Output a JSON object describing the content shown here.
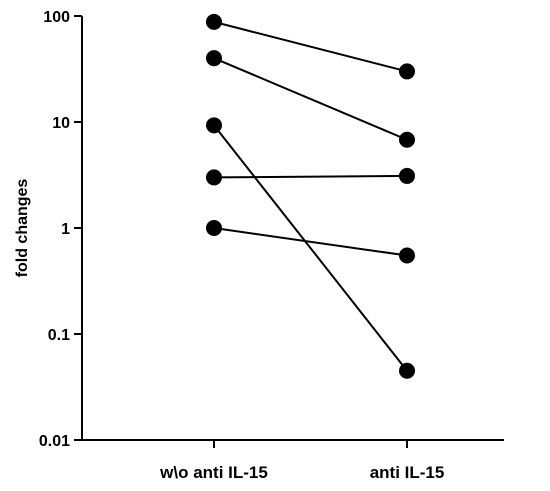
{
  "chart_data": {
    "type": "line",
    "ylabel": "fold changes",
    "xlabel": "",
    "yscale": "log",
    "ylim": [
      0.01,
      100
    ],
    "yticks": [
      0.01,
      0.1,
      1,
      10,
      100
    ],
    "ytick_labels": [
      "0.01",
      "0.1",
      "1",
      "10",
      "100"
    ],
    "categories": [
      "w\\o anti IL-15",
      "anti IL-15"
    ],
    "series": [
      {
        "values": [
          88,
          30
        ]
      },
      {
        "values": [
          40,
          6.8
        ]
      },
      {
        "values": [
          9.3,
          0.045
        ]
      },
      {
        "values": [
          3.0,
          3.1
        ]
      },
      {
        "values": [
          1.0,
          0.55
        ]
      }
    ],
    "colors": {
      "line": "#000000",
      "marker": "#000000"
    }
  }
}
